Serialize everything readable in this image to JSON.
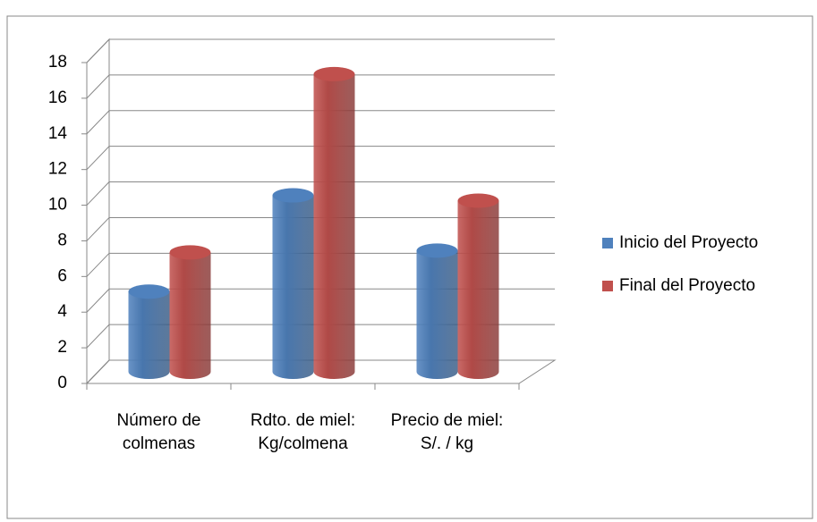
{
  "chart_data": {
    "type": "bar3d",
    "categories": [
      "Número de colmenas",
      "Rdto. de miel: Kg/colmena",
      "Precio de miel: S/. / kg"
    ],
    "series": [
      {
        "name": "Inicio del Proyecto",
        "color": "#4f81bd",
        "values": [
          4.5,
          9.9,
          6.8
        ]
      },
      {
        "name": "Final del Proyecto",
        "color": "#c0504d",
        "values": [
          6.7,
          16.7,
          9.6
        ]
      }
    ],
    "ylim": [
      0,
      18
    ],
    "yticks": [
      0,
      2,
      4,
      6,
      8,
      10,
      12,
      14,
      16,
      18
    ],
    "grid": true,
    "legend": "right"
  }
}
